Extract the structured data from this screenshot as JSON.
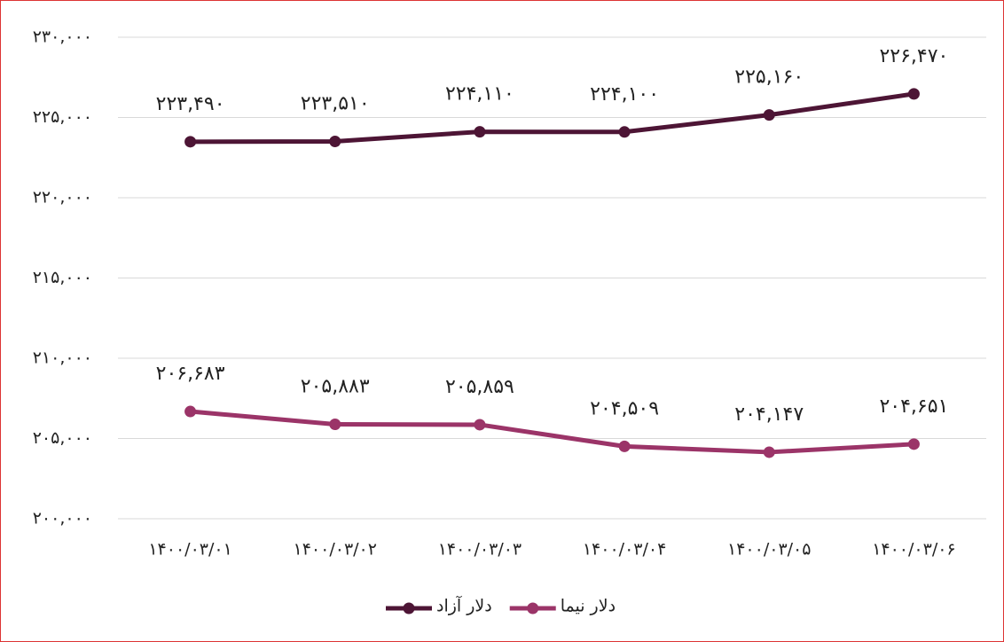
{
  "chart_data": {
    "type": "line",
    "categories": [
      "۱۴۰۰/۰۳/۰۱",
      "۱۴۰۰/۰۳/۰۲",
      "۱۴۰۰/۰۳/۰۳",
      "۱۴۰۰/۰۳/۰۴",
      "۱۴۰۰/۰۳/۰۵",
      "۱۴۰۰/۰۳/۰۶"
    ],
    "series": [
      {
        "name": "دلار آزاد",
        "color": "#4d1535",
        "values": [
          223490,
          223510,
          224110,
          224100,
          225160,
          226470
        ],
        "value_labels": [
          "۲۲۳,۴۹۰",
          "۲۲۳,۵۱۰",
          "۲۲۴,۱۱۰",
          "۲۲۴,۱۰۰",
          "۲۲۵,۱۶۰",
          "۲۲۶,۴۷۰"
        ]
      },
      {
        "name": "دلار نیما",
        "color": "#9b3468",
        "values": [
          206683,
          205883,
          205859,
          204509,
          204147,
          204651
        ],
        "value_labels": [
          "۲۰۶,۶۸۳",
          "۲۰۵,۸۸۳",
          "۲۰۵,۸۵۹",
          "۲۰۴,۵۰۹",
          "۲۰۴,۱۴۷",
          "۲۰۴,۶۵۱"
        ]
      }
    ],
    "ylim": [
      200000,
      230000
    ],
    "yticks": [
      {
        "value": 200000,
        "label": "۲۰۰,۰۰۰"
      },
      {
        "value": 205000,
        "label": "۲۰۵,۰۰۰"
      },
      {
        "value": 210000,
        "label": "۲۱۰,۰۰۰"
      },
      {
        "value": 215000,
        "label": "۲۱۵,۰۰۰"
      },
      {
        "value": 220000,
        "label": "۲۲۰,۰۰۰"
      },
      {
        "value": 225000,
        "label": "۲۲۵,۰۰۰"
      },
      {
        "value": 230000,
        "label": "۲۳۰,۰۰۰"
      }
    ],
    "grid": true,
    "legend": "bottom"
  }
}
